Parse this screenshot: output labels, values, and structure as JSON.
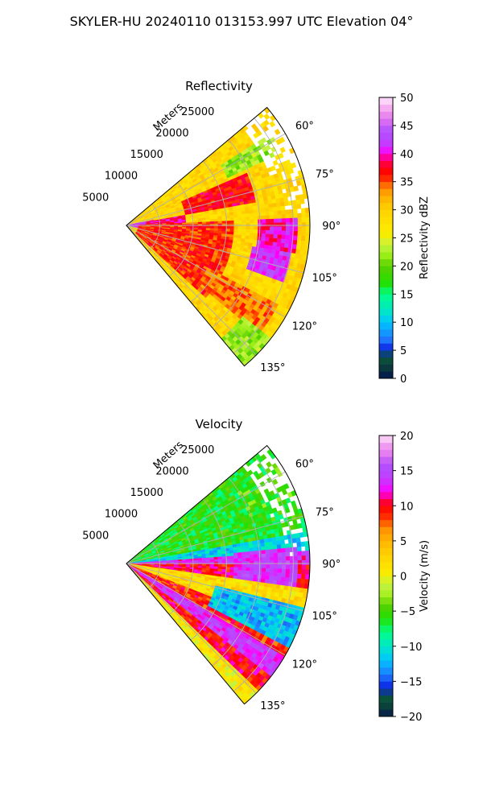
{
  "figure": {
    "suptitle": "SKYLER-HU  20240110  013153.997 UTC Elevation 04°"
  },
  "chart_data": [
    {
      "type": "heatmap",
      "projection": "polar-sector",
      "title": "Reflectivity",
      "radial_label": "Meters",
      "radial_ticks": [
        5000,
        10000,
        15000,
        20000,
        25000
      ],
      "radial_tick_labels": [
        "5000",
        "10000",
        "15000",
        "20000",
        "25000"
      ],
      "rmax": 27500,
      "theta_range_deg": [
        50,
        140
      ],
      "theta_ticks": [
        60,
        75,
        90,
        105,
        120,
        135
      ],
      "theta_tick_labels": [
        "60°",
        "75°",
        "90°",
        "105°",
        "120°",
        "135°"
      ],
      "grid": true,
      "colorbar": {
        "label": "Reflectivity dBZ",
        "vmin": 0,
        "vmax": 50,
        "levels": 40,
        "ticks": [
          0,
          5,
          10,
          15,
          20,
          25,
          30,
          35,
          40,
          45,
          50
        ],
        "tick_labels": [
          "0",
          "5",
          "10",
          "15",
          "20",
          "25",
          "30",
          "35",
          "40",
          "45",
          "50"
        ],
        "stops": [
          [
            0,
            "#061452"
          ],
          [
            2,
            "#0a3a3a"
          ],
          [
            4,
            "#0b5a3c"
          ],
          [
            5,
            "#0a1ae0"
          ],
          [
            7,
            "#1f7cff"
          ],
          [
            10,
            "#00c4ff"
          ],
          [
            12,
            "#00e6c8"
          ],
          [
            15,
            "#00ff88"
          ],
          [
            17,
            "#22e000"
          ],
          [
            20,
            "#58d000"
          ],
          [
            22,
            "#9ef01a"
          ],
          [
            24,
            "#c8f244"
          ],
          [
            25,
            "#f0f000"
          ],
          [
            27,
            "#ffe600"
          ],
          [
            30,
            "#ffd200"
          ],
          [
            32,
            "#ffb400"
          ],
          [
            34,
            "#ff8a00"
          ],
          [
            35,
            "#ff3c00"
          ],
          [
            37,
            "#ff0000"
          ],
          [
            39,
            "#ff0066"
          ],
          [
            40,
            "#ff00ff"
          ],
          [
            42,
            "#c040ff"
          ],
          [
            44,
            "#b050ff"
          ],
          [
            46,
            "#e070f0"
          ],
          [
            48,
            "#f4a8f0"
          ],
          [
            50,
            "#ffe8fa"
          ]
        ]
      },
      "field_regions": [
        {
          "r": [
            0,
            4000
          ],
          "theta": [
            78,
            102
          ],
          "value": 42
        },
        {
          "r": [
            3000,
            9000
          ],
          "theta": [
            80,
            100
          ],
          "value": 39
        },
        {
          "r": [
            2000,
            16000
          ],
          "theta": [
            88,
            132
          ],
          "value": 36
        },
        {
          "r": [
            9000,
            20000
          ],
          "theta": [
            66,
            80
          ],
          "value": 37
        },
        {
          "r": [
            20000,
            26000
          ],
          "theta": [
            88,
            100
          ],
          "value": 40
        },
        {
          "r": [
            19000,
            25000
          ],
          "theta": [
            100,
            110
          ],
          "value": 42
        },
        {
          "r": [
            14000,
            26000
          ],
          "theta": [
            118,
            130
          ],
          "value": 34
        },
        {
          "r": [
            17000,
            26000
          ],
          "theta": [
            57,
            65
          ],
          "value": 22
        },
        {
          "r": [
            22000,
            27500
          ],
          "theta": [
            128,
            140
          ],
          "value": 22
        }
      ],
      "background_value": 29
    },
    {
      "type": "heatmap",
      "projection": "polar-sector",
      "title": "Velocity",
      "radial_label": "Meters",
      "radial_ticks": [
        5000,
        10000,
        15000,
        20000,
        25000
      ],
      "radial_tick_labels": [
        "5000",
        "10000",
        "15000",
        "20000",
        "25000"
      ],
      "rmax": 27500,
      "theta_range_deg": [
        50,
        140
      ],
      "theta_ticks": [
        60,
        75,
        90,
        105,
        120,
        135
      ],
      "theta_tick_labels": [
        "60°",
        "75°",
        "90°",
        "105°",
        "120°",
        "135°"
      ],
      "grid": true,
      "colorbar": {
        "label": "Velocity (m/s)",
        "vmin": -20,
        "vmax": 20,
        "levels": 40,
        "ticks": [
          -20,
          -15,
          -10,
          -5,
          0,
          5,
          10,
          15,
          20
        ],
        "tick_labels": [
          "−20",
          "−15",
          "−10",
          "−5",
          "0",
          "5",
          "10",
          "15",
          "20"
        ],
        "stops": [
          [
            -20,
            "#061452"
          ],
          [
            -19,
            "#0a3a3a"
          ],
          [
            -17,
            "#0b5a3c"
          ],
          [
            -16,
            "#0a1ae0"
          ],
          [
            -14,
            "#1f7cff"
          ],
          [
            -12,
            "#00c4ff"
          ],
          [
            -10,
            "#00e6c8"
          ],
          [
            -8,
            "#00ff88"
          ],
          [
            -6,
            "#22e000"
          ],
          [
            -4,
            "#58d000"
          ],
          [
            -3,
            "#9ef01a"
          ],
          [
            -1,
            "#c8f244"
          ],
          [
            0,
            "#f0f000"
          ],
          [
            1,
            "#ffe600"
          ],
          [
            3,
            "#ffd200"
          ],
          [
            5,
            "#ffb400"
          ],
          [
            7,
            "#ff8a00"
          ],
          [
            8,
            "#ff3c00"
          ],
          [
            10,
            "#ff0000"
          ],
          [
            11,
            "#ff0066"
          ],
          [
            12,
            "#ff00ff"
          ],
          [
            14,
            "#c040ff"
          ],
          [
            16,
            "#b050ff"
          ],
          [
            17,
            "#e070f0"
          ],
          [
            19,
            "#f4a8f0"
          ],
          [
            20,
            "#ffe8fa"
          ]
        ]
      },
      "field_regions": [
        {
          "r": [
            0,
            27500
          ],
          "theta": [
            50,
            80
          ],
          "value": -6
        },
        {
          "r": [
            0,
            27500
          ],
          "theta": [
            80,
            86
          ],
          "value": -11
        },
        {
          "r": [
            0,
            27500
          ],
          "theta": [
            86,
            91
          ],
          "value": 13
        },
        {
          "r": [
            0,
            27500
          ],
          "theta": [
            91,
            98
          ],
          "value": 10
        },
        {
          "r": [
            0,
            27500
          ],
          "theta": [
            98,
            112
          ],
          "value": 2
        },
        {
          "r": [
            0,
            27500
          ],
          "theta": [
            112,
            120
          ],
          "value": 9
        },
        {
          "r": [
            0,
            27500
          ],
          "theta": [
            120,
            128
          ],
          "value": 14
        },
        {
          "r": [
            0,
            27500
          ],
          "theta": [
            128,
            134
          ],
          "value": 10
        },
        {
          "r": [
            0,
            27500
          ],
          "theta": [
            134,
            140
          ],
          "value": 1
        },
        {
          "r": [
            14000,
            27500
          ],
          "theta": [
            104,
            118
          ],
          "value": -12
        },
        {
          "r": [
            16000,
            26000
          ],
          "theta": [
            84,
            98
          ],
          "value": 14
        },
        {
          "r": [
            20000,
            27500
          ],
          "theta": [
            58,
            70
          ],
          "value": -5
        }
      ],
      "background_value": 0
    }
  ]
}
